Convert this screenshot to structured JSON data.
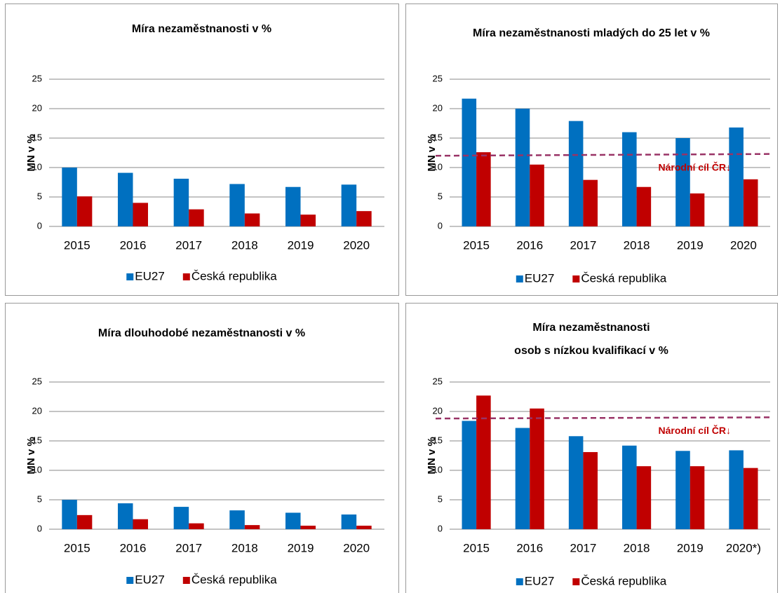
{
  "chart_data": [
    {
      "type": "bar",
      "title": [
        "Míra nezaměstnanosti v %"
      ],
      "ylabel": "MN v %",
      "categories": [
        "2015",
        "2016",
        "2017",
        "2018",
        "2019",
        "2020"
      ],
      "series": [
        {
          "name": "EU27",
          "color": "#0070c0",
          "values": [
            10.0,
            9.1,
            8.1,
            7.2,
            6.7,
            7.1
          ]
        },
        {
          "name": "Česká republika",
          "color": "#c00000",
          "values": [
            5.1,
            4.0,
            2.9,
            2.2,
            2.0,
            2.6
          ]
        }
      ],
      "ylim": [
        0,
        25
      ],
      "yticks": [
        0,
        5,
        10,
        15,
        20,
        25
      ],
      "grid": true
    },
    {
      "type": "bar",
      "title": [
        "Míra nezaměstnanosti mladých do 25 let v %"
      ],
      "ylabel": "MN v %",
      "categories": [
        "2015",
        "2016",
        "2017",
        "2018",
        "2019",
        "2020"
      ],
      "series": [
        {
          "name": "EU27",
          "color": "#0070c0",
          "values": [
            21.7,
            20.0,
            17.9,
            16.0,
            15.0,
            16.8
          ]
        },
        {
          "name": "Česká republika",
          "color": "#c00000",
          "values": [
            12.6,
            10.5,
            7.9,
            6.7,
            5.6,
            8.0
          ]
        }
      ],
      "target": {
        "label": "Národní cíl ČR↓",
        "color": "#993366",
        "values": [
          12.0,
          12.3
        ]
      },
      "ylim": [
        0,
        25
      ],
      "yticks": [
        0,
        5,
        10,
        15,
        20,
        25
      ],
      "grid": true
    },
    {
      "type": "bar",
      "title": [
        "Míra dlouhodobé nezaměstnanosti v %"
      ],
      "ylabel": "MN v %",
      "categories": [
        "2015",
        "2016",
        "2017",
        "2018",
        "2019",
        "2020"
      ],
      "series": [
        {
          "name": "EU27",
          "color": "#0070c0",
          "values": [
            5.0,
            4.4,
            3.8,
            3.2,
            2.8,
            2.5
          ]
        },
        {
          "name": "Česká republika",
          "color": "#c00000",
          "values": [
            2.4,
            1.7,
            1.0,
            0.7,
            0.6,
            0.6
          ]
        }
      ],
      "ylim": [
        0,
        25
      ],
      "yticks": [
        0,
        5,
        10,
        15,
        20,
        25
      ],
      "grid": true
    },
    {
      "type": "bar",
      "title": [
        "Míra nezaměstnanosti",
        "osob s nízkou kvalifikací v %"
      ],
      "ylabel": "MN v %",
      "categories": [
        "2015",
        "2016",
        "2017",
        "2018",
        "2019",
        "2020*)"
      ],
      "series": [
        {
          "name": "EU27",
          "color": "#0070c0",
          "values": [
            18.4,
            17.2,
            15.8,
            14.2,
            13.3,
            13.4
          ]
        },
        {
          "name": "Česká republika",
          "color": "#c00000",
          "values": [
            22.7,
            20.5,
            13.1,
            10.7,
            10.7,
            10.4
          ]
        }
      ],
      "target": {
        "label": "Národní cíl ČR↓",
        "color": "#993366",
        "values": [
          18.8,
          19.0
        ]
      },
      "ylim": [
        0,
        25
      ],
      "yticks": [
        0,
        5,
        10,
        15,
        20,
        25
      ],
      "grid": true
    }
  ]
}
